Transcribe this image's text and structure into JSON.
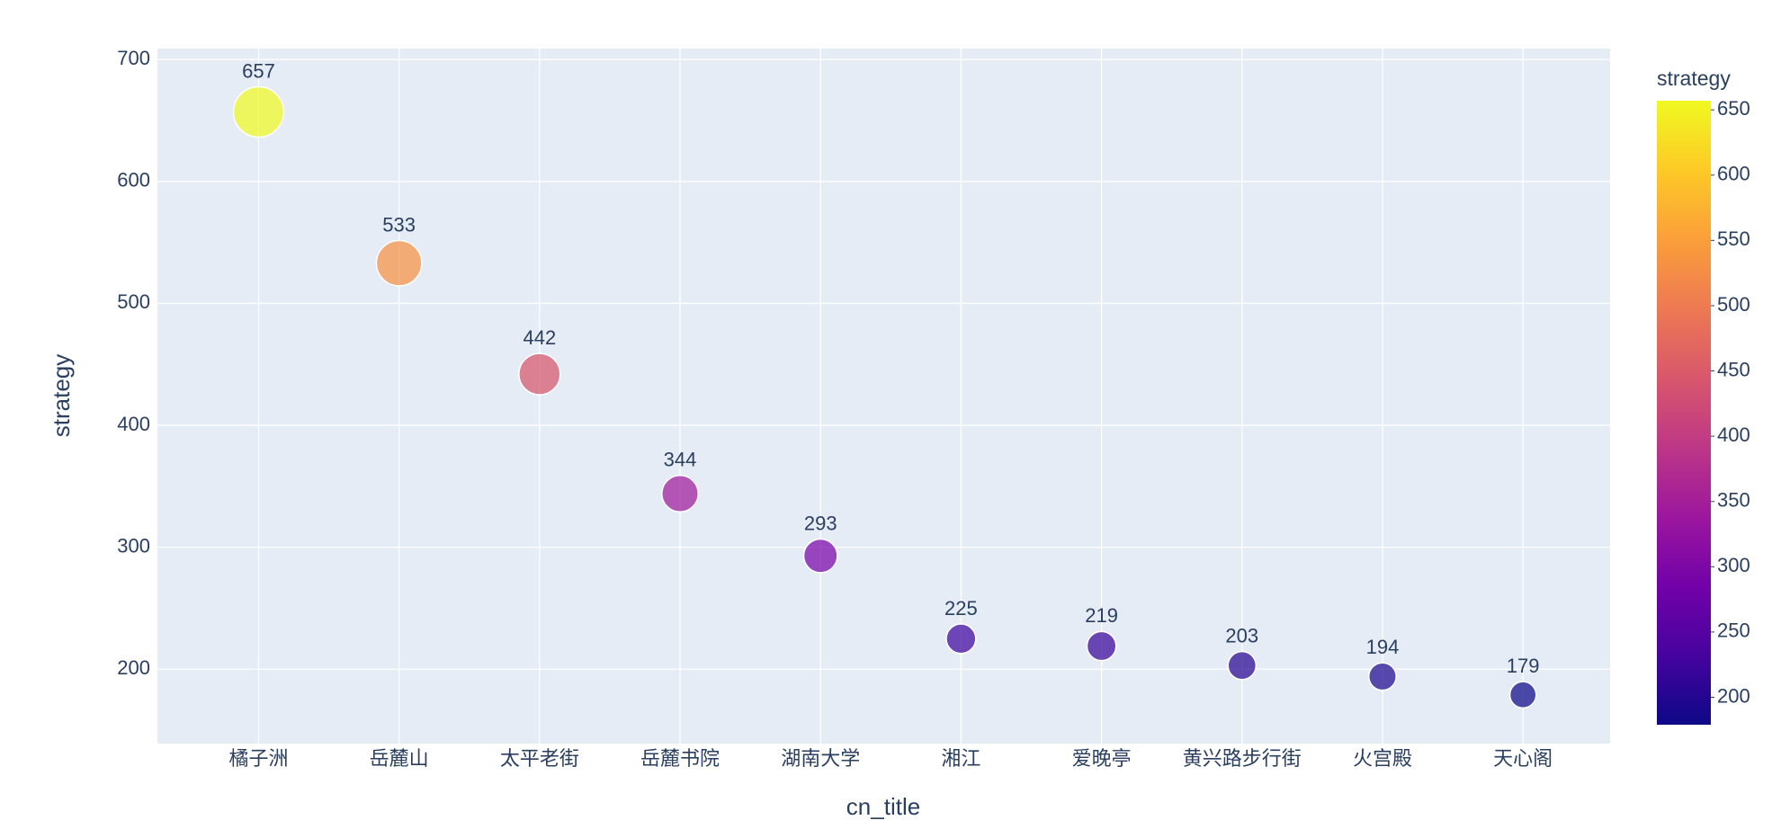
{
  "chart_data": {
    "type": "scatter",
    "x_label": "cn_title",
    "y_label": "strategy",
    "categories": [
      "橘子洲",
      "岳麓山",
      "太平老街",
      "岳麓书院",
      "湖南大学",
      "湘江",
      "爱晚亭",
      "黄兴路步行街",
      "火宫殿",
      "天心阁"
    ],
    "values": [
      657,
      533,
      442,
      344,
      293,
      225,
      219,
      203,
      194,
      179
    ],
    "ylim": [
      139,
      709
    ],
    "yticks": [
      200,
      300,
      400,
      500,
      600,
      700
    ],
    "grid": true,
    "colorbar": {
      "title": "strategy",
      "lim": [
        179,
        657
      ],
      "ticks": [
        200,
        250,
        300,
        350,
        400,
        450,
        500,
        550,
        600,
        650
      ],
      "colorscale": [
        "#0d0887",
        "#46039f",
        "#7201a8",
        "#9c179e",
        "#bd3786",
        "#d8576b",
        "#ed7953",
        "#fb9f3a",
        "#fdca26",
        "#f0f921"
      ]
    }
  }
}
